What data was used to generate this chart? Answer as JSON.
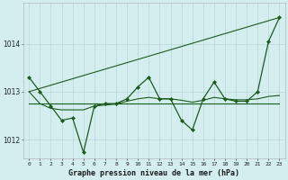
{
  "title": "Graphe pression niveau de la mer (hPa)",
  "bg_color": "#d4eef0",
  "grid_color": "#b8d8da",
  "line_color": "#1a5c1a",
  "ylim": [
    1011.6,
    1014.85
  ],
  "yticks": [
    1012,
    1013,
    1014
  ],
  "xlim": [
    -0.5,
    23.5
  ],
  "series_main": [
    1013.3,
    1013.0,
    1012.7,
    1012.4,
    1012.45,
    1011.73,
    1012.7,
    1012.75,
    1012.75,
    1012.85,
    1013.1,
    1013.3,
    1012.85,
    1012.85,
    1012.4,
    1012.2,
    1012.85,
    1013.2,
    1012.85,
    1012.8,
    1012.8,
    1013.0,
    1014.05,
    1014.55
  ],
  "series_flat": [
    1012.75,
    1012.75,
    1012.75,
    1012.75,
    1012.75,
    1012.75,
    1012.75,
    1012.75,
    1012.75,
    1012.75,
    1012.75,
    1012.75,
    1012.75,
    1012.75,
    1012.75,
    1012.75,
    1012.75,
    1012.75,
    1012.75,
    1012.75,
    1012.75,
    1012.75,
    1012.75,
    1012.75
  ],
  "series_trend_x": [
    0,
    23
  ],
  "series_trend_y": [
    1013.0,
    1014.55
  ],
  "series_smooth": [
    1013.0,
    1012.75,
    1012.65,
    1012.62,
    1012.62,
    1012.62,
    1012.7,
    1012.72,
    1012.74,
    1012.8,
    1012.85,
    1012.88,
    1012.85,
    1012.85,
    1012.82,
    1012.78,
    1012.82,
    1012.88,
    1012.85,
    1012.83,
    1012.83,
    1012.85,
    1012.9,
    1012.92
  ]
}
